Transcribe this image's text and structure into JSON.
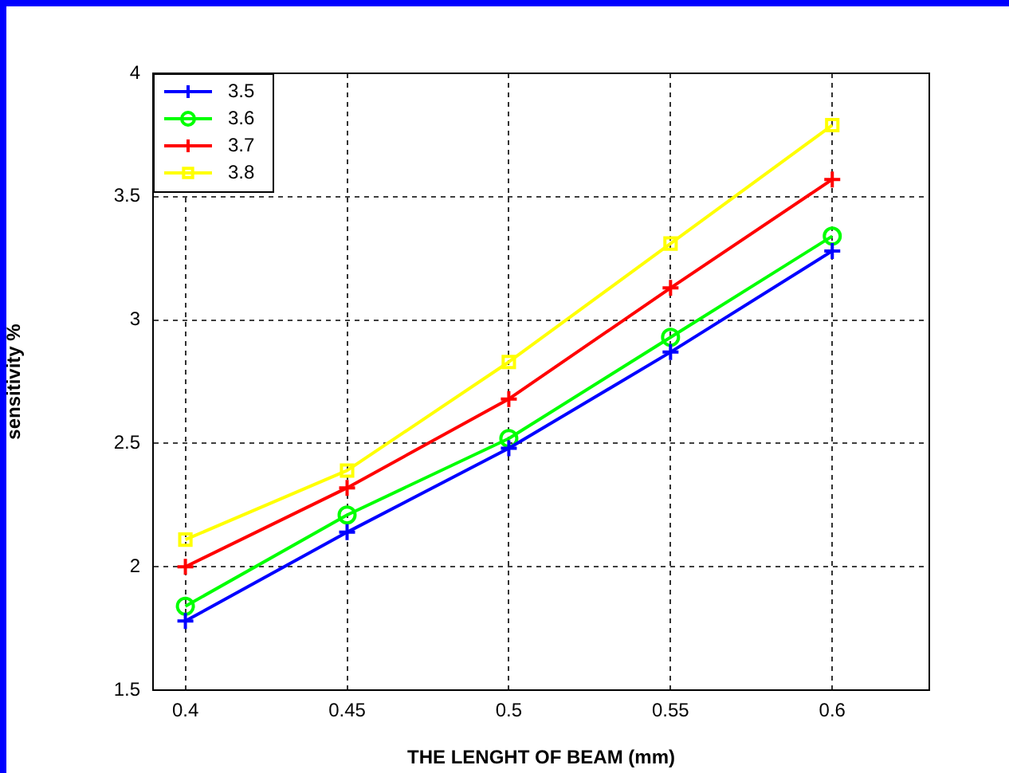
{
  "chart_data": {
    "type": "line",
    "xlabel": "THE LENGHT OF BEAM (mm)",
    "ylabel": "sensitivity %",
    "x": [
      0.4,
      0.45,
      0.5,
      0.55,
      0.6
    ],
    "series": [
      {
        "name": "3.5",
        "color": "#0000ff",
        "marker": "cross",
        "values": [
          1.78,
          2.14,
          2.48,
          2.87,
          3.28
        ]
      },
      {
        "name": "3.6",
        "color": "#00ff00",
        "marker": "circle",
        "values": [
          1.84,
          2.21,
          2.52,
          2.93,
          3.34
        ]
      },
      {
        "name": "3.7",
        "color": "#ff0000",
        "marker": "cross",
        "values": [
          2.0,
          2.32,
          2.68,
          3.13,
          3.57
        ]
      },
      {
        "name": "3.8",
        "color": "#ffff00",
        "marker": "square",
        "values": [
          2.11,
          2.39,
          2.83,
          3.31,
          3.79
        ]
      }
    ],
    "xlim": [
      0.39,
      0.63
    ],
    "xticks": [
      0.4,
      0.45,
      0.5,
      0.55,
      0.6
    ],
    "ylim": [
      1.5,
      4
    ],
    "yticks": [
      1.5,
      2,
      2.5,
      3,
      3.5,
      4
    ],
    "grid": true,
    "legend": "top left",
    "line_style": "solid"
  }
}
